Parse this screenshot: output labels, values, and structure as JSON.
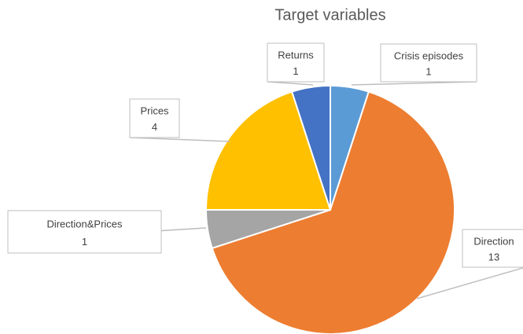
{
  "chart_data": {
    "type": "pie",
    "title": "Target variables",
    "categories": [
      "Crisis episodes",
      "Direction",
      "Direction&Prices",
      "Prices",
      "Returns"
    ],
    "values": [
      1,
      13,
      1,
      4,
      1
    ],
    "colors": [
      "#5b9bd5",
      "#ed7d31",
      "#a5a5a5",
      "#ffc000",
      "#4472c4"
    ]
  }
}
